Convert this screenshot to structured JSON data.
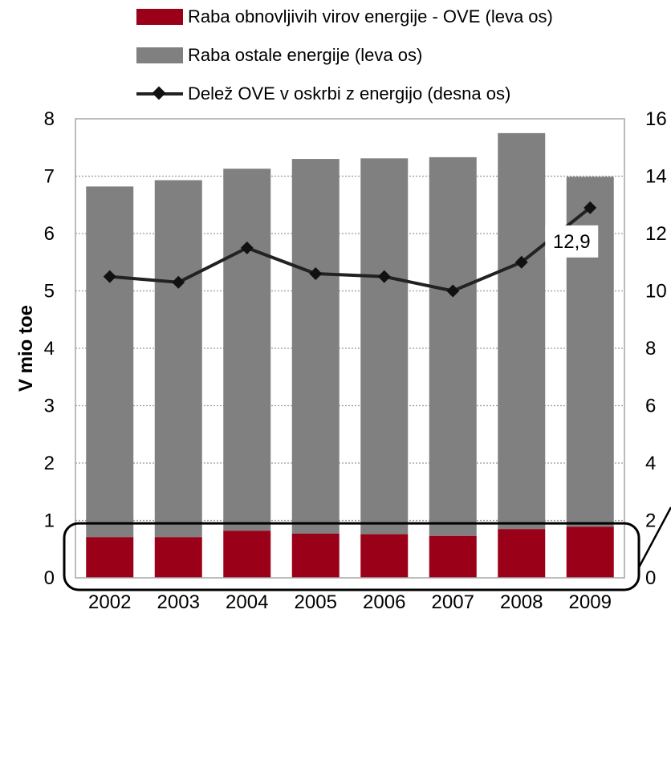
{
  "legend": {
    "renewable": "Raba obnovljivih virov energije - OVE (leva os)",
    "other": "Raba ostale energije (leva os)",
    "share": "Delež OVE v oskrbi z energijo (desna os)"
  },
  "colors": {
    "renewable": "#9b0019",
    "other": "#808080",
    "share_line": "#222222",
    "grid": "#9a9a9a",
    "frame": "#a6a6a6"
  },
  "chart_data": {
    "type": "bar",
    "stacked": true,
    "categories": [
      "2002",
      "2003",
      "2004",
      "2005",
      "2006",
      "2007",
      "2008",
      "2009"
    ],
    "series": [
      {
        "name": "Raba obnovljivih virov energije - OVE (leva os)",
        "axis": "left",
        "type": "bar",
        "values": [
          0.71,
          0.71,
          0.82,
          0.77,
          0.76,
          0.73,
          0.85,
          0.89
        ]
      },
      {
        "name": "Raba ostale energije (leva os)",
        "axis": "left",
        "type": "bar",
        "values": [
          6.11,
          6.22,
          6.31,
          6.53,
          6.55,
          6.6,
          6.9,
          6.1
        ]
      },
      {
        "name": "Delež OVE v oskrbi z energijo (desna os)",
        "axis": "right",
        "type": "line",
        "marker": "diamond",
        "values": [
          10.5,
          10.3,
          11.5,
          10.6,
          10.5,
          10.0,
          11.0,
          12.9
        ]
      }
    ],
    "ylabel": "V mio toe",
    "ylim": [
      0,
      8
    ],
    "yticks": [
      0,
      1,
      2,
      3,
      4,
      5,
      6,
      7,
      8
    ],
    "y2lim": [
      0,
      16
    ],
    "y2ticks": [
      0,
      2,
      4,
      6,
      8,
      10,
      12,
      14,
      16
    ],
    "grid": true,
    "legend_position": "top",
    "annotation": {
      "text": "12,9",
      "category": "2009"
    }
  }
}
